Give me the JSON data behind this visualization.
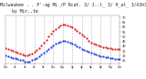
{
  "title_line1": "Milwaukee . . P'-ag ML /P Rcat. 3/ J..l_ 3/ H_al_ 3/A3®3",
  "title_fontsize": 3.5,
  "title_color": "#222222",
  "bg_color": "#ffffff",
  "plot_bg_color": "#ffffff",
  "grid_color": "#aaaacc",
  "red_color": "#dd1111",
  "blue_color": "#1133dd",
  "ylim": [
    22,
    72
  ],
  "xlim": [
    0,
    1440
  ],
  "ytick_values": [
    25,
    30,
    35,
    40,
    45,
    50,
    55,
    60,
    65,
    70
  ],
  "ytick_labels": [
    "25",
    "30",
    "35",
    "40",
    "45",
    "50",
    "55",
    "60",
    "65",
    "70"
  ],
  "xtick_positions": [
    0,
    120,
    240,
    360,
    480,
    600,
    720,
    840,
    960,
    1080,
    1200,
    1320,
    1440
  ],
  "xtick_labels": [
    "12a",
    "2a",
    "4a",
    "6a",
    "8a",
    "10a",
    "12p",
    "2p",
    "4p",
    "6p",
    "8p",
    "10p",
    "12a"
  ],
  "vgrid_positions": [
    120,
    240,
    360,
    480,
    600,
    720,
    840,
    960,
    1080,
    1200,
    1320
  ],
  "temp_x": [
    0,
    30,
    60,
    90,
    120,
    150,
    180,
    210,
    240,
    270,
    300,
    330,
    360,
    390,
    420,
    450,
    480,
    510,
    540,
    570,
    600,
    630,
    660,
    690,
    720,
    750,
    780,
    810,
    840,
    870,
    900,
    930,
    960,
    990,
    1020,
    1050,
    1080,
    1110,
    1140,
    1170,
    1200,
    1230,
    1260,
    1290,
    1320,
    1350,
    1380,
    1410,
    1440
  ],
  "temp_y": [
    38,
    37,
    36,
    35,
    34,
    33,
    32,
    31,
    30,
    30,
    31,
    32,
    34,
    36,
    38,
    41,
    44,
    47,
    50,
    53,
    56,
    58,
    60,
    62,
    63,
    63,
    62,
    61,
    60,
    58,
    56,
    54,
    52,
    50,
    48,
    46,
    44,
    43,
    42,
    41,
    40,
    39,
    39,
    38,
    38,
    37,
    37,
    37,
    37
  ],
  "dew_x": [
    0,
    30,
    60,
    90,
    120,
    150,
    180,
    210,
    240,
    270,
    300,
    330,
    360,
    390,
    420,
    450,
    480,
    510,
    540,
    570,
    600,
    630,
    660,
    690,
    720,
    750,
    780,
    810,
    840,
    870,
    900,
    930,
    960,
    990,
    1020,
    1050,
    1080,
    1110,
    1140,
    1170,
    1200,
    1230,
    1260,
    1290,
    1320,
    1350,
    1380,
    1410,
    1440
  ],
  "dew_y": [
    30,
    29,
    28,
    27,
    27,
    26,
    25,
    25,
    24,
    24,
    24,
    25,
    26,
    27,
    29,
    31,
    33,
    35,
    37,
    39,
    41,
    43,
    44,
    45,
    46,
    46,
    45,
    44,
    43,
    42,
    40,
    39,
    37,
    36,
    35,
    34,
    33,
    32,
    31,
    30,
    29,
    29,
    28,
    28,
    27,
    27,
    26,
    26,
    26
  ],
  "marker_size": 1.2,
  "line_width": 0.5
}
